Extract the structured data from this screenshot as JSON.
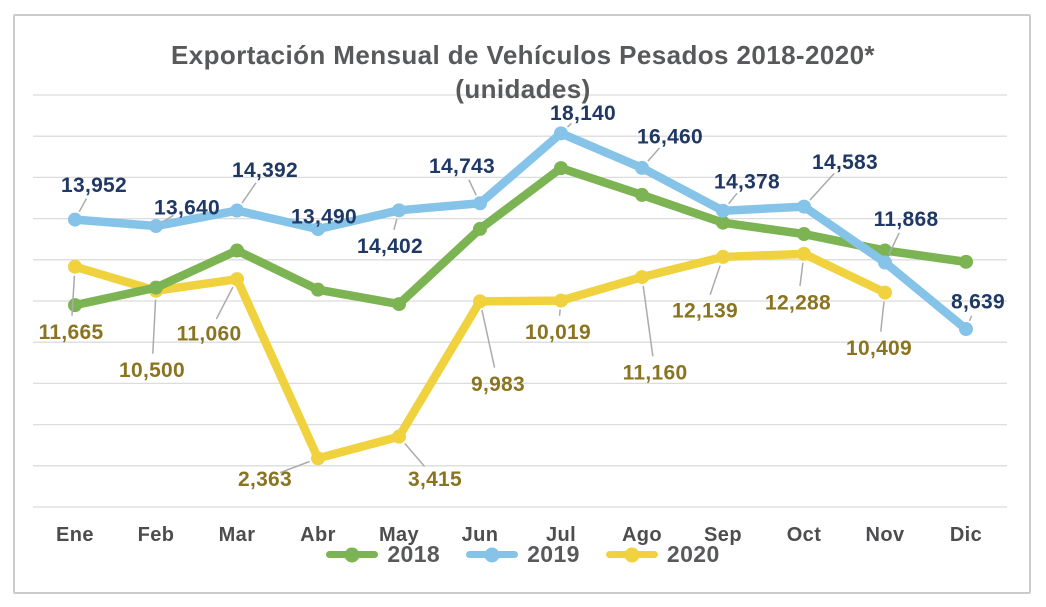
{
  "chart": {
    "title": "Exportación Mensual de Vehículos Pesados 2018-2020*",
    "subtitle": "(unidades)"
  },
  "chart_data": {
    "type": "line",
    "categories": [
      "Ene",
      "Feb",
      "Mar",
      "Abr",
      "May",
      "Jun",
      "Jul",
      "Ago",
      "Sep",
      "Oct",
      "Nov",
      "Dic"
    ],
    "series": [
      {
        "name": "2018",
        "color": "#7cb454",
        "labels_shown": false,
        "values_estimated_from_plot": true,
        "values": [
          9800,
          10650,
          12450,
          10550,
          9850,
          13500,
          16450,
          15150,
          13800,
          13250,
          12450,
          11900
        ]
      },
      {
        "name": "2019",
        "color": "#85c3e9",
        "label_color": "#1f3864",
        "labels_shown": true,
        "values": [
          13952,
          13640,
          14392,
          13490,
          14402,
          14743,
          18140,
          16460,
          14378,
          14583,
          11868,
          8639
        ]
      },
      {
        "name": "2020",
        "color": "#f0d23e",
        "label_color": "#8a7420",
        "labels_shown": true,
        "values": [
          11665,
          10500,
          11060,
          2363,
          3415,
          9983,
          10019,
          11160,
          12139,
          12288,
          10409,
          null
        ]
      }
    ],
    "ylim": [
      0,
      20000
    ],
    "gridlines": 11,
    "grid": true,
    "legend_position": "bottom",
    "leader_line_color": "#ababab",
    "gridline_color": "#dcdcdc",
    "label_offsets": {
      "2019": [
        [
          19,
          -35
        ],
        [
          31,
          -19
        ],
        [
          28,
          -41
        ],
        [
          6,
          -13
        ],
        [
          -9,
          35
        ],
        [
          -18,
          -38
        ],
        [
          22,
          -21
        ],
        [
          28,
          -32
        ],
        [
          24,
          -30
        ],
        [
          41,
          -45
        ],
        [
          21,
          -44
        ],
        [
          12,
          -28
        ]
      ],
      "2020": [
        [
          -4,
          65
        ],
        [
          -4,
          79
        ],
        [
          -28,
          54
        ],
        [
          -53,
          20
        ],
        [
          36,
          42
        ],
        [
          18,
          82
        ],
        [
          -3,
          31
        ],
        [
          13,
          95
        ],
        [
          -18,
          53
        ],
        [
          -6,
          48
        ],
        [
          -6,
          55
        ],
        null
      ]
    }
  },
  "legend": {
    "items": [
      {
        "label": "2018",
        "color": "#7cb454"
      },
      {
        "label": "2019",
        "color": "#85c3e9"
      },
      {
        "label": "2020",
        "color": "#f0d23e"
      }
    ]
  }
}
